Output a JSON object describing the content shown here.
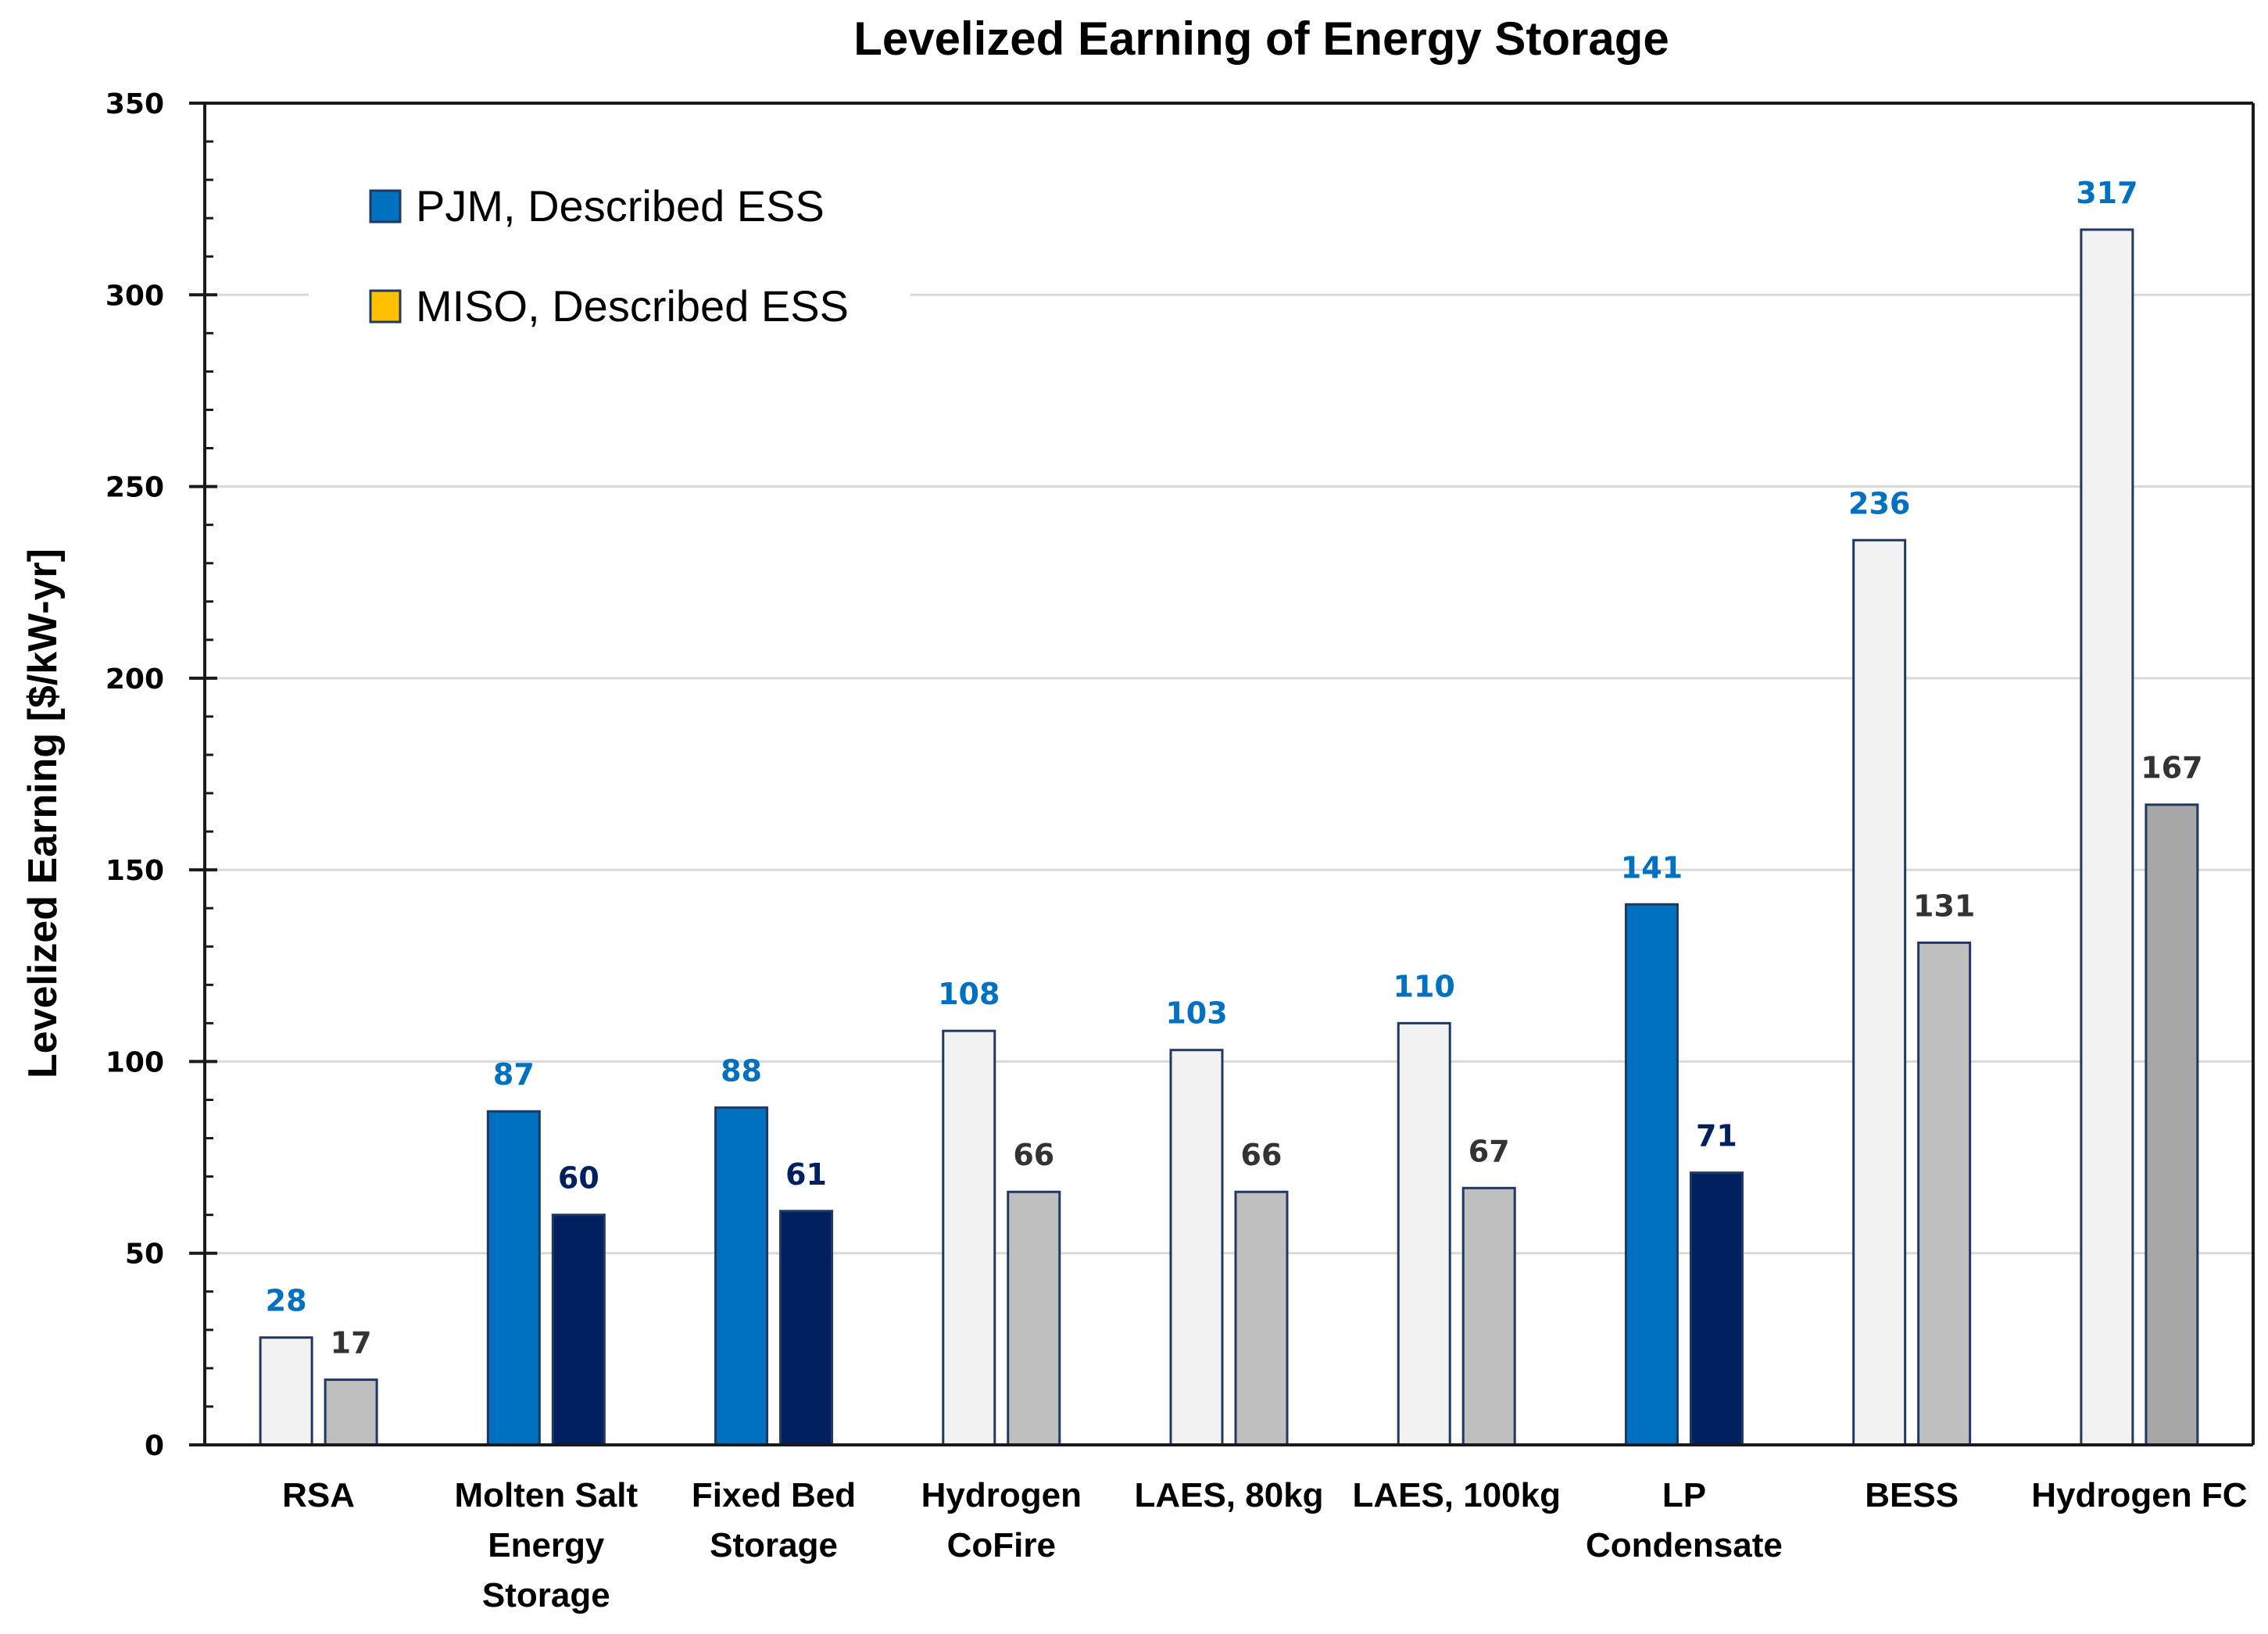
{
  "chart_data": {
    "type": "bar",
    "title": "Levelized Earning of Energy Storage",
    "xlabel": "",
    "ylabel": "Levelized Earning [$/kW-yr]",
    "ylim": [
      0,
      350
    ],
    "yticks": [
      0,
      50,
      100,
      150,
      200,
      250,
      300,
      350
    ],
    "yminor_step": 10,
    "grid": true,
    "legend_position": "top-left",
    "categories": [
      [
        "RSA"
      ],
      [
        "Molten Salt",
        "Energy",
        "Storage"
      ],
      [
        "Fixed Bed",
        "Storage"
      ],
      [
        "Hydrogen",
        "CoFire"
      ],
      [
        "LAES, 80kg"
      ],
      [
        "LAES, 100kg"
      ],
      [
        "LP",
        "Condensate"
      ],
      [
        "BESS"
      ],
      [
        "Hydrogen FC"
      ]
    ],
    "series": [
      {
        "name": "PJM, Described ESS",
        "legend_color": "#0070C0",
        "values": [
          28,
          87,
          88,
          108,
          103,
          110,
          141,
          236,
          317
        ],
        "bar_fills": [
          "#F2F2F2",
          "#0070C0",
          "#0070C0",
          "#F2F2F2",
          "#F2F2F2",
          "#F2F2F2",
          "#0070C0",
          "#F2F2F2",
          "#F2F2F2"
        ],
        "label_colors": [
          "#0070C0",
          "#0070C0",
          "#0070C0",
          "#0070C0",
          "#0070C0",
          "#0070C0",
          "#0070C0",
          "#0070C0",
          "#0070C0"
        ]
      },
      {
        "name": "MISO, Described ESS",
        "legend_color": "#FFC000",
        "values": [
          17,
          60,
          61,
          66,
          66,
          67,
          71,
          131,
          167
        ],
        "bar_fills": [
          "#BFBFBF",
          "#002060",
          "#002060",
          "#BFBFBF",
          "#BFBFBF",
          "#BFBFBF",
          "#002060",
          "#BFBFBF",
          "#A6A6A6"
        ],
        "label_colors": [
          "#333333",
          "#002060",
          "#002060",
          "#333333",
          "#333333",
          "#333333",
          "#002060",
          "#333333",
          "#333333"
        ]
      }
    ]
  },
  "colors": {
    "bar_outline": "#203864",
    "gridline": "#D9D9D9",
    "axis": "#1A1A1A"
  }
}
